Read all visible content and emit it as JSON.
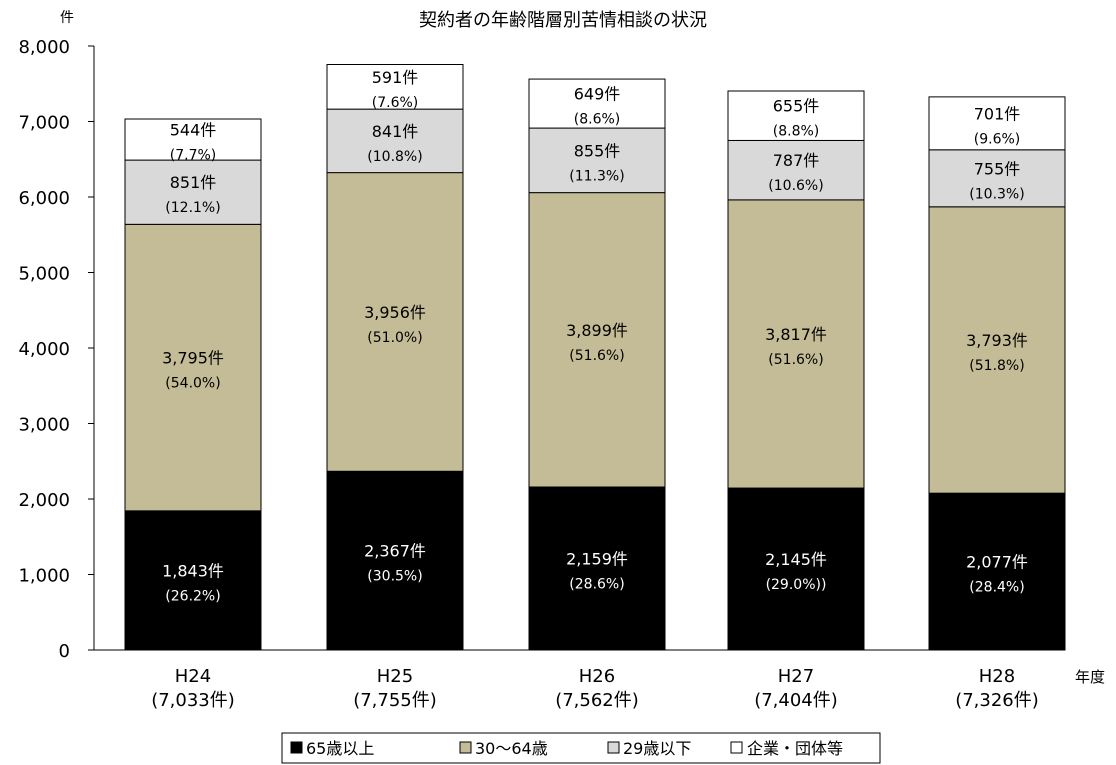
{
  "chart_data": {
    "type": "bar",
    "stacked": true,
    "title": "契約者の年齢階層別苦情相談の状況",
    "ylabel": "件",
    "xlabel": "年度",
    "ylim": [
      0,
      8000
    ],
    "yticks": [
      0,
      1000,
      2000,
      3000,
      4000,
      5000,
      6000,
      7000,
      8000
    ],
    "ytick_labels": [
      "0",
      "1,000",
      "2,000",
      "3,000",
      "4,000",
      "5,000",
      "6,000",
      "7,000",
      "8,000"
    ],
    "grid": false,
    "legend_position": "bottom",
    "categories": [
      "H24",
      "H25",
      "H26",
      "H27",
      "H28"
    ],
    "category_totals": [
      "(7,033件)",
      "(7,755件)",
      "(7,562件)",
      "(7,404件)",
      "(7,326件)"
    ],
    "series": [
      {
        "name": "65歳以上",
        "color": "#000000",
        "label_color": "#ffffff",
        "values": [
          1843,
          2367,
          2159,
          2145,
          2077
        ],
        "labels": [
          "1,843件",
          "2,367件",
          "2,159件",
          "2,145件",
          "2,077件"
        ],
        "percents": [
          "(26.2%)",
          "(30.5%)",
          "(28.6%)",
          "(29.0%))",
          "(28.4%)"
        ]
      },
      {
        "name": "30～64歳",
        "color": "#c4bc96",
        "label_color": "#000000",
        "values": [
          3795,
          3956,
          3899,
          3817,
          3793
        ],
        "labels": [
          "3,795件",
          "3,956件",
          "3,899件",
          "3,817件",
          "3,793件"
        ],
        "percents": [
          "(54.0%)",
          "(51.0%)",
          "(51.6%)",
          "(51.6%)",
          "(51.8%)"
        ]
      },
      {
        "name": "29歳以下",
        "color": "#d9d9d9",
        "label_color": "#000000",
        "values": [
          851,
          841,
          855,
          787,
          755
        ],
        "labels": [
          "851件",
          "841件",
          "855件",
          "787件",
          "755件"
        ],
        "percents": [
          "(12.1%)",
          "(10.8%)",
          "(11.3%)",
          "(10.6%)",
          "(10.3%)"
        ]
      },
      {
        "name": "企業・団体等",
        "color": "#ffffff",
        "label_color": "#000000",
        "values": [
          544,
          591,
          649,
          655,
          701
        ],
        "labels": [
          "544件",
          "591件",
          "649件",
          "655件",
          "701件"
        ],
        "percents": [
          "(7.7%)",
          "(7.6%)",
          "(8.6%)",
          "(8.8%)",
          "(9.6%)"
        ]
      }
    ]
  }
}
